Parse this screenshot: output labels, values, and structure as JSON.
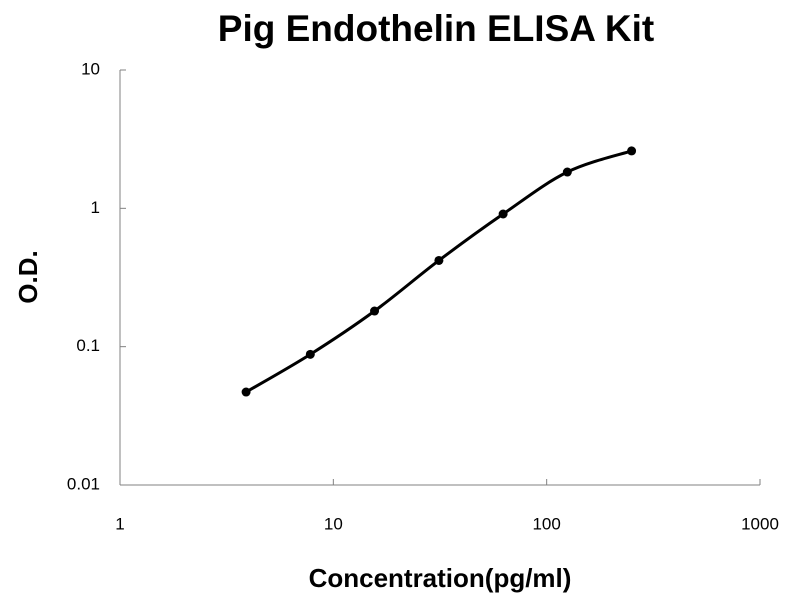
{
  "chart_data": {
    "type": "line",
    "title": "Pig Endothelin ELISA Kit",
    "x_label": "Concentration(pg/ml)",
    "y_label": "O.D.",
    "x": [
      3.9,
      7.8,
      15.6,
      31.25,
      62.5,
      125,
      250
    ],
    "series": [
      {
        "values": [
          0.047,
          0.088,
          0.181,
          0.42,
          0.91,
          1.83,
          2.6
        ],
        "color": "#000000"
      }
    ],
    "xscale": "log",
    "yscale": "log",
    "xlim": [
      1,
      1000
    ],
    "ylim": [
      0.01,
      10
    ],
    "xticks": [
      1,
      10,
      100,
      1000
    ],
    "yticks": [
      0.01,
      0.1,
      1,
      10
    ],
    "markers": true,
    "grid": false
  }
}
